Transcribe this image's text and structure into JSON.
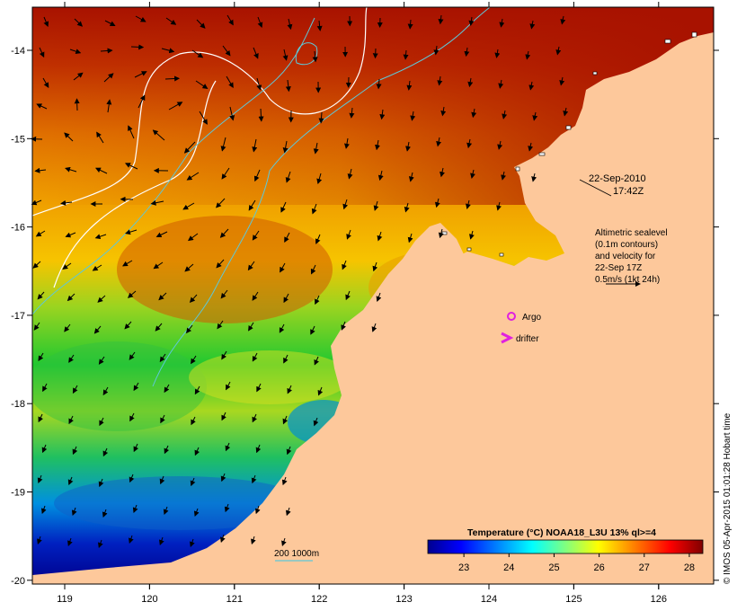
{
  "map": {
    "lon_ticks": [
      "119",
      "120",
      "121",
      "122",
      "123",
      "124",
      "125",
      "126"
    ],
    "lat_ticks": [
      "-14",
      "-15",
      "-16",
      "-17",
      "-18",
      "-19",
      "-20"
    ],
    "date_label": "22-Sep-2010",
    "time_label": "17:42Z",
    "altimetry_note": [
      "Altimetric sealevel",
      "(0.1m contours)",
      "and velocity for",
      "22-Sep 17Z",
      "0.5m/s (1kt 24h)"
    ],
    "argo_label": "Argo",
    "drifter_label": "drifter",
    "depth_legend": "200  1000m",
    "credit": "© IMOS 05-Apr-2015 01:01:28 Hobart time",
    "colors": {
      "land": "#fdc89b",
      "argo": "#e020e0",
      "drifter": "#e020e0",
      "isobath": "#5ec8d8",
      "sealevel_contour": "#ffffff"
    }
  },
  "colorbar": {
    "title": "Temperature (°C) NOAA18_L3U 13% ql>=4",
    "ticks": [
      "23",
      "24",
      "25",
      "26",
      "27",
      "28"
    ],
    "range": [
      22.2,
      28.3
    ],
    "colors": [
      "#00008f",
      "#0000ff",
      "#0080ff",
      "#00ffff",
      "#80ff80",
      "#ffff00",
      "#ff8000",
      "#ff0000",
      "#800000"
    ]
  }
}
